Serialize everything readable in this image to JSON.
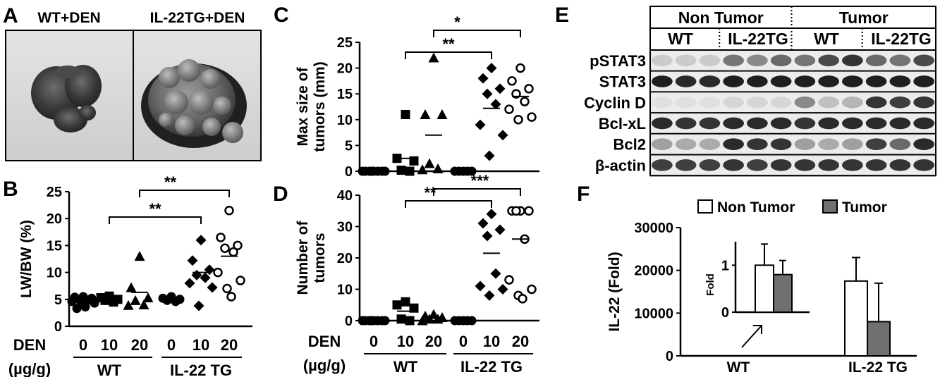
{
  "panels": {
    "A": {
      "label": "A",
      "images": [
        {
          "label": "WT+DEN",
          "content": "liver-photo-small"
        },
        {
          "label": "IL-22TG+DEN",
          "content": "liver-photo-tumor"
        }
      ]
    },
    "E": {
      "label": "E",
      "header_groups": [
        "Non Tumor",
        "Tumor"
      ],
      "header_lanes": [
        "WT",
        "IL-22TG",
        "WT",
        "IL-22TG"
      ],
      "rows": [
        "pSTAT3",
        "STAT3",
        "Cyclin D",
        "Bcl-xL",
        "Bcl2",
        "β-actin"
      ],
      "lane_intensity": [
        [
          0.15,
          0.15,
          0.15,
          0.55,
          0.45,
          0.6,
          0.55,
          0.75,
          0.85,
          0.6,
          0.55,
          0.75
        ],
        [
          0.95,
          0.9,
          0.9,
          0.95,
          0.95,
          0.95,
          0.95,
          0.95,
          0.95,
          0.95,
          0.95,
          0.95
        ],
        [
          0.05,
          0.05,
          0.05,
          0.1,
          0.1,
          0.1,
          0.45,
          0.2,
          0.25,
          0.85,
          0.8,
          0.85
        ],
        [
          0.9,
          0.85,
          0.85,
          0.9,
          0.9,
          0.9,
          0.85,
          0.9,
          0.9,
          0.9,
          0.9,
          0.9
        ],
        [
          0.35,
          0.3,
          0.3,
          0.9,
          0.85,
          0.85,
          0.35,
          0.3,
          0.35,
          0.8,
          0.6,
          0.9
        ],
        [
          0.8,
          0.8,
          0.8,
          0.85,
          0.8,
          0.85,
          0.85,
          0.85,
          0.85,
          0.85,
          0.85,
          0.85
        ]
      ]
    }
  },
  "chart_data": [
    {
      "panel": "B",
      "type": "scatter",
      "ylabel": "LW/BW (%)",
      "ylim": [
        0,
        25
      ],
      "yticks": [
        "0",
        "5",
        "10",
        "15",
        "20",
        "25"
      ],
      "dose_label": "DEN",
      "unit_label": "(µg/g)",
      "groups": [
        {
          "dose": "0",
          "genotype": "WT",
          "marker": "filled-circle",
          "mean": 4.8,
          "points": [
            5.5,
            5.4,
            5.2,
            5.0,
            4.8,
            4.6,
            4.3,
            4.0,
            3.6,
            3.3
          ]
        },
        {
          "dose": "10",
          "genotype": "WT",
          "marker": "filled-square",
          "mean": 5.0,
          "points": [
            5.6,
            5.3,
            5.0,
            4.8,
            4.5
          ]
        },
        {
          "dose": "20",
          "genotype": "WT",
          "marker": "filled-triangle",
          "mean": 6.3,
          "points": [
            13.0,
            7.2,
            5.3,
            4.8,
            4.0,
            3.9
          ]
        },
        {
          "dose": "0",
          "genotype": "IL-22 TG",
          "marker": "filled-circle",
          "mean": 5.1,
          "points": [
            5.5,
            5.2,
            5.0,
            4.8,
            4.6
          ]
        },
        {
          "dose": "10",
          "genotype": "IL-22 TG",
          "marker": "filled-diamond",
          "mean": 10.0,
          "points": [
            16.0,
            12.2,
            10.5,
            9.5,
            9.0,
            8.0,
            7.2,
            3.8
          ]
        },
        {
          "dose": "20",
          "genotype": "IL-22 TG",
          "marker": "open-circle",
          "mean": 13.0,
          "points": [
            21.5,
            16.5,
            15.0,
            14.5,
            13.8,
            10.0,
            8.5,
            7.0,
            5.5
          ]
        }
      ],
      "genotype_labels": [
        "WT",
        "IL-22 TG"
      ],
      "significance": [
        {
          "from_group": 1,
          "to_group": 4,
          "label": "**"
        },
        {
          "from_group": 2,
          "to_group": 5,
          "label": "**"
        }
      ]
    },
    {
      "panel": "C",
      "type": "scatter",
      "ylabel": [
        "Max size of",
        "tumors (mm)"
      ],
      "ylim": [
        0,
        25
      ],
      "yticks": [
        "0",
        "5",
        "10",
        "15",
        "20",
        "25"
      ],
      "groups": [
        {
          "dose": "0",
          "genotype": "WT",
          "marker": "filled-circle",
          "mean": 0.0,
          "points": [
            0,
            0,
            0,
            0,
            0,
            0,
            0,
            0
          ]
        },
        {
          "dose": "10",
          "genotype": "WT",
          "marker": "filled-square",
          "mean": 2.5,
          "points": [
            11.0,
            2.5,
            2.0,
            0.2,
            0.0
          ]
        },
        {
          "dose": "20",
          "genotype": "WT",
          "marker": "filled-triangle",
          "mean": 7.0,
          "points": [
            22.0,
            11.0,
            11.0,
            1.5,
            0.5,
            0.3
          ]
        },
        {
          "dose": "0",
          "genotype": "IL-22 TG",
          "marker": "filled-circle",
          "mean": 0.0,
          "points": [
            0,
            0,
            0,
            0,
            0
          ]
        },
        {
          "dose": "10",
          "genotype": "IL-22 TG",
          "marker": "filled-diamond",
          "mean": 12.2,
          "points": [
            20.0,
            18.0,
            16.0,
            15.0,
            13.0,
            9.0,
            7.0,
            3.0
          ]
        },
        {
          "dose": "20",
          "genotype": "IL-22 TG",
          "marker": "open-circle",
          "mean": 14.5,
          "points": [
            20.0,
            17.5,
            16.0,
            15.0,
            13.5,
            12.0,
            10.5,
            10.0
          ]
        }
      ],
      "significance": [
        {
          "from_group": 1,
          "to_group": 4,
          "label": "**"
        },
        {
          "from_group": 2,
          "to_group": 5,
          "label": "*"
        }
      ]
    },
    {
      "panel": "D",
      "type": "scatter",
      "ylabel": [
        "Number of",
        "tumors"
      ],
      "ylim": [
        0,
        40
      ],
      "yticks": [
        "0",
        "10",
        "20",
        "30",
        "40"
      ],
      "dose_label": "DEN",
      "unit_label": "(µg/g)",
      "groups": [
        {
          "dose": "0",
          "genotype": "WT",
          "marker": "filled-circle",
          "mean": 0.0,
          "points": [
            0,
            0,
            0,
            0,
            0,
            0,
            0,
            0
          ]
        },
        {
          "dose": "10",
          "genotype": "WT",
          "marker": "filled-square",
          "mean": 3.0,
          "points": [
            6.0,
            5.0,
            4.0,
            0.5,
            0.0
          ]
        },
        {
          "dose": "20",
          "genotype": "WT",
          "marker": "filled-triangle",
          "mean": 1.0,
          "points": [
            2.0,
            1.5,
            1.0,
            0.5,
            0.5,
            0.0
          ]
        },
        {
          "dose": "0",
          "genotype": "IL-22 TG",
          "marker": "filled-circle",
          "mean": 0.0,
          "points": [
            0,
            0,
            0,
            0,
            0
          ]
        },
        {
          "dose": "10",
          "genotype": "IL-22 TG",
          "marker": "filled-diamond",
          "mean": 21.5,
          "points": [
            34.0,
            31.0,
            29.0,
            27.0,
            15.0,
            11.0,
            10.0,
            8.0
          ]
        },
        {
          "dose": "20",
          "genotype": "IL-22 TG",
          "marker": "open-circle",
          "mean": 26.0,
          "points": [
            35.0,
            35.0,
            35.0,
            35.0,
            26.0,
            13.0,
            10.0,
            8.0,
            7.0
          ]
        }
      ],
      "genotype_labels": [
        "WT",
        "IL-22 TG"
      ],
      "significance": [
        {
          "from_group": 1,
          "to_group": 4,
          "label": "**"
        },
        {
          "from_group": 2,
          "to_group": 5,
          "label": "***"
        }
      ]
    },
    {
      "panel": "F",
      "type": "bar",
      "ylabel": "IL-22 (Fold)",
      "ylim": [
        0,
        30000
      ],
      "yticks": [
        "0",
        "10000",
        "20000",
        "30000"
      ],
      "categories": [
        "WT",
        "IL-22 TG"
      ],
      "series": [
        {
          "name": "Non Tumor",
          "color": "#ffffff",
          "values": [
            1,
            17500
          ],
          "errors": [
            0.45,
            5500
          ]
        },
        {
          "name": "Tumor",
          "color": "#707070",
          "values": [
            0.8,
            8000
          ],
          "errors": [
            0.3,
            9000
          ]
        }
      ],
      "inset": {
        "ylabel": "Fold",
        "ylim": [
          0,
          1.5
        ],
        "yticks": [
          "0",
          "1"
        ],
        "values": [
          1.0,
          0.8
        ],
        "errors": [
          0.45,
          0.3
        ]
      },
      "legend_position": "top"
    }
  ]
}
